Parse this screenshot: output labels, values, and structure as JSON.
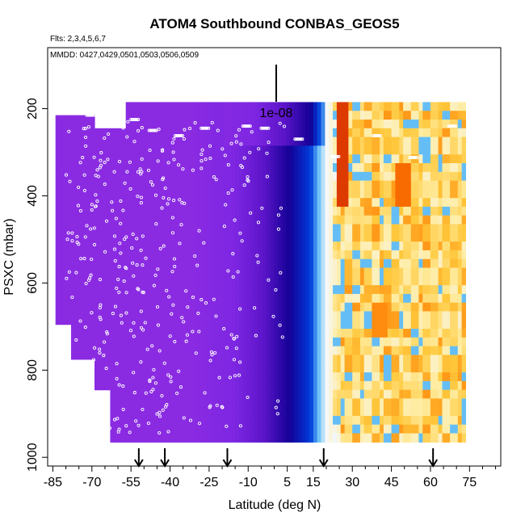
{
  "chart_data": {
    "type": "heatmap",
    "title": "ATOM4 Southbound CONBAS_GEOS5",
    "flights_note": "Flts: 2,3,4,5,6,7",
    "dates_note": "MMDD: 0427,0429,0501,0503,0506,0509",
    "scale_label": "1e-08",
    "xlabel": "Latitude (deg N)",
    "ylabel": "PSXC (mbar)",
    "xlim": [
      -87,
      87
    ],
    "ylim": [
      1020,
      60
    ],
    "x_ticks": [
      -85,
      -70,
      -55,
      -40,
      -25,
      -10,
      5,
      15,
      30,
      45,
      60,
      75
    ],
    "x_minor_ticks": [
      -80,
      -75,
      -65,
      -60,
      -50,
      -45,
      -35,
      -30,
      -20,
      -15,
      -5,
      0,
      10,
      20,
      25,
      35,
      40,
      50,
      55,
      65,
      70,
      80,
      85
    ],
    "y_ticks": [
      200,
      400,
      600,
      800,
      1000
    ],
    "arrows_lat": [
      -52,
      -42,
      -18,
      19,
      61
    ],
    "colorbar_reference": "blue-purple = low, yellow-red = high",
    "field_description": "latitude-pressure curtain of CONBAS tracer, purple in southern hemisphere grading through blue/dark blue near 10N, white/cyan near 20N, yellow/orange/red north of 25N",
    "data_points_markers": "white open circles marking sample locations"
  }
}
